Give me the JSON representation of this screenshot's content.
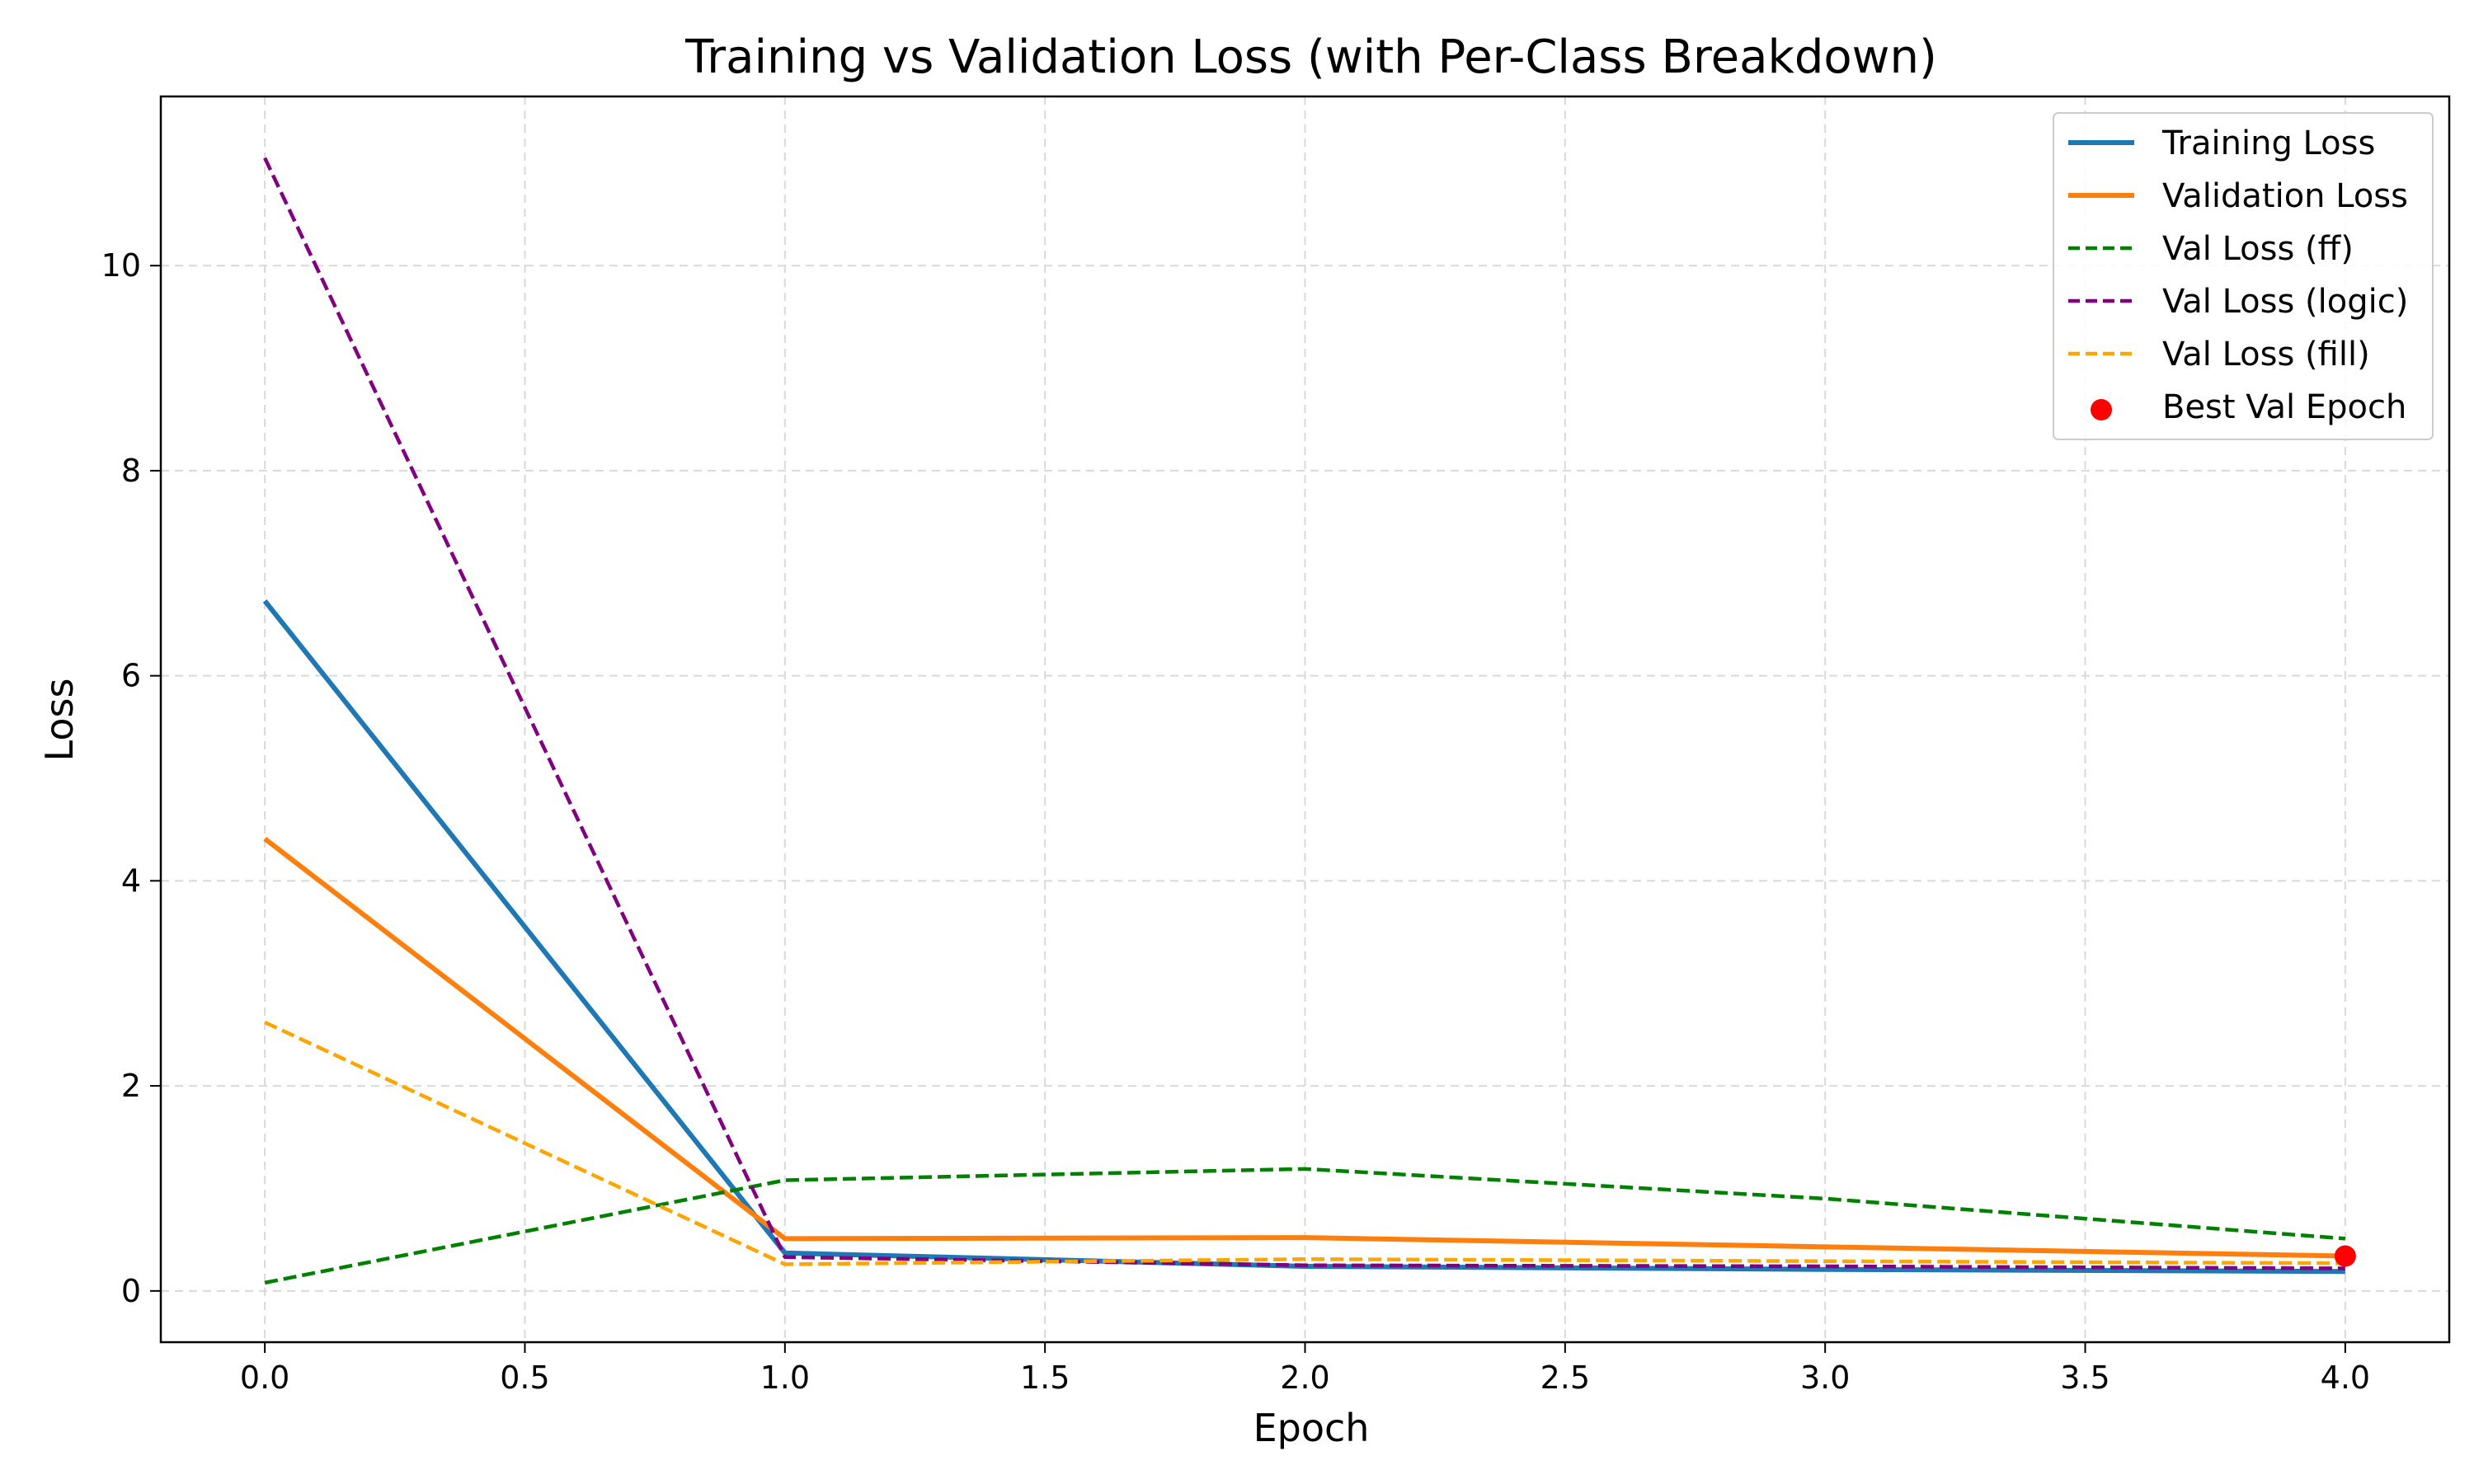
{
  "chart_data": {
    "type": "line",
    "title": "Training vs Validation Loss (with Per-Class Breakdown)",
    "xlabel": "Epoch",
    "ylabel": "Loss",
    "xlim": [
      -0.2,
      4.2
    ],
    "ylim": [
      -0.5,
      11.65
    ],
    "x_ticks": [
      0.0,
      0.5,
      1.0,
      1.5,
      2.0,
      2.5,
      3.0,
      3.5,
      4.0
    ],
    "x_tick_labels": [
      "0.0",
      "0.5",
      "1.0",
      "1.5",
      "2.0",
      "2.5",
      "3.0",
      "3.5",
      "4.0"
    ],
    "y_ticks": [
      0,
      2,
      4,
      6,
      8,
      10
    ],
    "y_tick_labels": [
      "0",
      "2",
      "4",
      "6",
      "8",
      "10"
    ],
    "grid": true,
    "legend_position": "top-right",
    "x": [
      0,
      1,
      2,
      3,
      4
    ],
    "series": [
      {
        "name": "Training Loss",
        "values": [
          6.73,
          0.37,
          0.24,
          0.21,
          0.19
        ],
        "color": "#1f77b4",
        "style": "solid"
      },
      {
        "name": "Validation Loss",
        "values": [
          4.41,
          0.51,
          0.52,
          0.43,
          0.34
        ],
        "color": "#ff7f0e",
        "style": "solid"
      },
      {
        "name": "Val Loss (ff)",
        "values": [
          0.08,
          1.08,
          1.19,
          0.9,
          0.51
        ],
        "color": "#008000",
        "style": "dashed"
      },
      {
        "name": "Val Loss (logic)",
        "values": [
          11.05,
          0.33,
          0.25,
          0.24,
          0.22
        ],
        "color": "#800080",
        "style": "dashed"
      },
      {
        "name": "Val Loss (fill)",
        "values": [
          2.62,
          0.26,
          0.31,
          0.29,
          0.27
        ],
        "color": "#ffa500",
        "style": "dashed"
      }
    ],
    "markers": [
      {
        "name": "Best Val Epoch",
        "x": 4,
        "y": 0.34,
        "color": "#ff0000"
      }
    ]
  }
}
